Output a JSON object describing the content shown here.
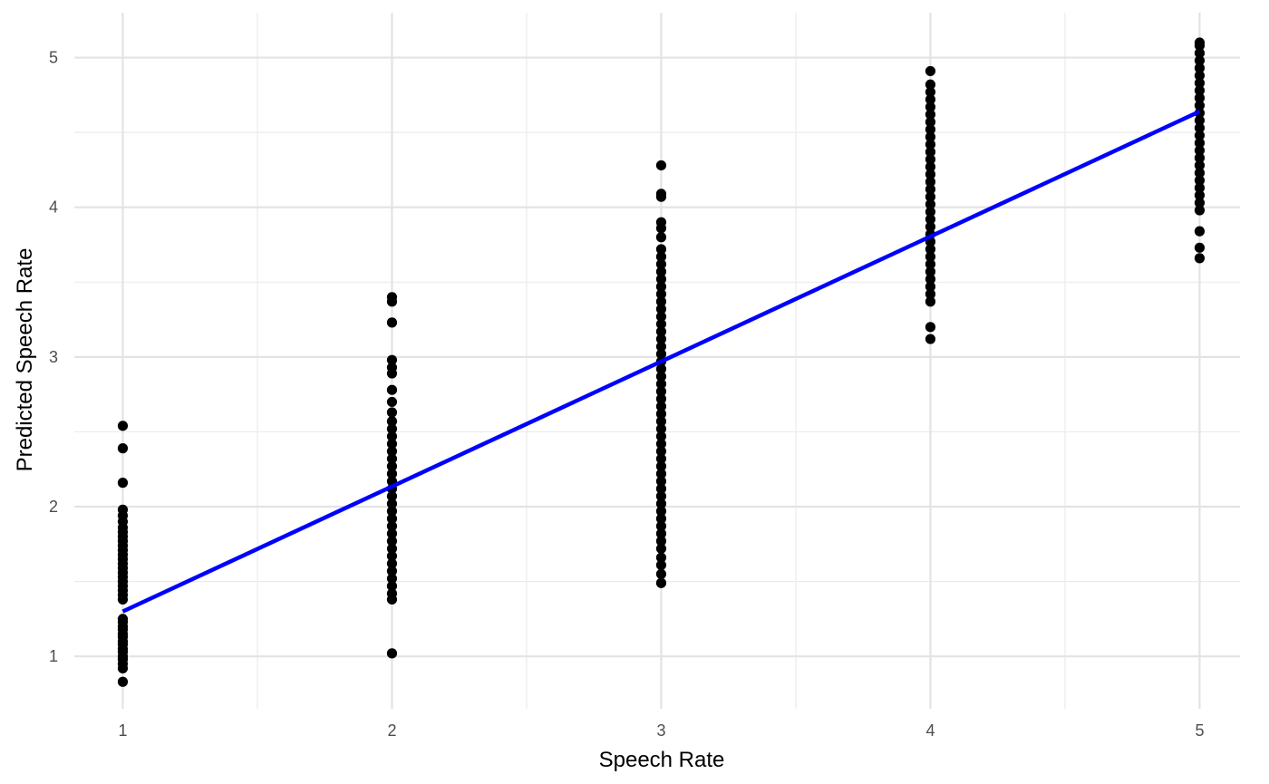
{
  "chart_data": {
    "type": "scatter",
    "title": "",
    "xlabel": "Speech Rate",
    "ylabel": "Predicted Speech Rate",
    "xlim": [
      0.82,
      5.15
    ],
    "ylim": [
      0.65,
      5.3
    ],
    "x_ticks": [
      1,
      2,
      3,
      4,
      5
    ],
    "y_ticks": [
      1,
      2,
      3,
      4,
      5
    ],
    "x_tick_labels": [
      "1",
      "2",
      "3",
      "4",
      "5"
    ],
    "y_tick_labels": [
      "1",
      "2",
      "3",
      "4",
      "5"
    ],
    "grid": true,
    "legend": "none",
    "point_color": "#000000",
    "fit_line_color": "#0000ff",
    "fit_line": {
      "x": [
        1,
        5
      ],
      "y": [
        1.3,
        4.64
      ]
    },
    "series": [
      {
        "x": 1,
        "y": [
          0.83,
          0.92,
          0.95,
          0.98,
          1.0,
          1.03,
          1.05,
          1.08,
          1.1,
          1.13,
          1.15,
          1.18,
          1.2,
          1.23,
          1.25,
          1.38,
          1.41,
          1.44,
          1.47,
          1.5,
          1.53,
          1.56,
          1.59,
          1.62,
          1.65,
          1.68,
          1.71,
          1.74,
          1.77,
          1.8,
          1.83,
          1.86,
          1.9,
          1.94,
          1.98,
          2.16,
          2.39,
          2.54
        ]
      },
      {
        "x": 2,
        "y": [
          1.02,
          1.38,
          1.42,
          1.47,
          1.52,
          1.57,
          1.62,
          1.67,
          1.72,
          1.77,
          1.82,
          1.87,
          1.92,
          1.97,
          2.02,
          2.07,
          2.12,
          2.17,
          2.22,
          2.27,
          2.32,
          2.37,
          2.42,
          2.47,
          2.52,
          2.57,
          2.63,
          2.7,
          2.78,
          2.89,
          2.93,
          2.98,
          3.23,
          3.37,
          3.4
        ]
      },
      {
        "x": 3,
        "y": [
          1.49,
          1.55,
          1.61,
          1.66,
          1.72,
          1.77,
          1.82,
          1.87,
          1.92,
          1.97,
          2.02,
          2.07,
          2.12,
          2.17,
          2.22,
          2.27,
          2.32,
          2.37,
          2.42,
          2.47,
          2.52,
          2.57,
          2.62,
          2.67,
          2.72,
          2.77,
          2.82,
          2.87,
          2.92,
          2.97,
          3.02,
          3.07,
          3.12,
          3.17,
          3.22,
          3.27,
          3.32,
          3.37,
          3.42,
          3.47,
          3.52,
          3.57,
          3.62,
          3.67,
          3.72,
          3.8,
          3.86,
          3.9,
          4.07,
          4.09,
          4.28
        ]
      },
      {
        "x": 4,
        "y": [
          3.12,
          3.2,
          3.37,
          3.42,
          3.47,
          3.52,
          3.57,
          3.62,
          3.67,
          3.72,
          3.77,
          3.82,
          3.87,
          3.92,
          3.97,
          4.02,
          4.07,
          4.12,
          4.17,
          4.22,
          4.27,
          4.32,
          4.37,
          4.42,
          4.47,
          4.52,
          4.57,
          4.62,
          4.67,
          4.72,
          4.77,
          4.82,
          4.91
        ]
      },
      {
        "x": 5,
        "y": [
          3.66,
          3.73,
          3.84,
          3.98,
          4.03,
          4.08,
          4.13,
          4.18,
          4.23,
          4.28,
          4.33,
          4.38,
          4.43,
          4.48,
          4.53,
          4.58,
          4.63,
          4.68,
          4.73,
          4.78,
          4.83,
          4.88,
          4.93,
          4.98,
          5.03,
          5.08,
          5.1
        ]
      }
    ]
  }
}
